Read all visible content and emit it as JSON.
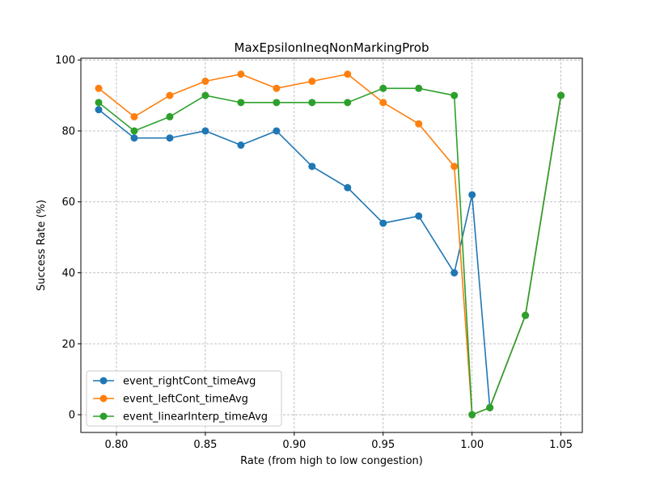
{
  "chart_data": {
    "type": "line",
    "title": "MaxEpsilonIneqNonMarkingProb",
    "xlabel": "Rate (from high to low congestion)",
    "ylabel": "Success Rate (%)",
    "xlim": [
      0.78,
      1.062
    ],
    "ylim": [
      -5,
      100.5
    ],
    "xticks": [
      0.8,
      0.85,
      0.9,
      0.95,
      1.0,
      1.05
    ],
    "xtick_labels": [
      "0.80",
      "0.85",
      "0.90",
      "0.95",
      "1.00",
      "1.05"
    ],
    "yticks": [
      0,
      20,
      40,
      60,
      80,
      100
    ],
    "ytick_labels": [
      "0",
      "20",
      "40",
      "60",
      "80",
      "100"
    ],
    "grid": true,
    "legend_position": "lower-left",
    "x": [
      0.79,
      0.81,
      0.83,
      0.85,
      0.87,
      0.89,
      0.91,
      0.93,
      0.95,
      0.97,
      0.99,
      1.0,
      1.01,
      1.03,
      1.05
    ],
    "series": [
      {
        "name": "event_rightCont_timeAvg",
        "color": "#1f77b4",
        "values": [
          86,
          78,
          78,
          80,
          76,
          80,
          70,
          64,
          54,
          56,
          40,
          62,
          2,
          28,
          90
        ]
      },
      {
        "name": "event_leftCont_timeAvg",
        "color": "#ff7f0e",
        "values": [
          92,
          84,
          90,
          94,
          96,
          92,
          94,
          96,
          88,
          82,
          70,
          0,
          2,
          28,
          90
        ]
      },
      {
        "name": "event_linearInterp_timeAvg",
        "color": "#2ca02c",
        "values": [
          88,
          80,
          84,
          90,
          88,
          88,
          88,
          88,
          92,
          92,
          90,
          0,
          2,
          28,
          90
        ]
      }
    ]
  }
}
